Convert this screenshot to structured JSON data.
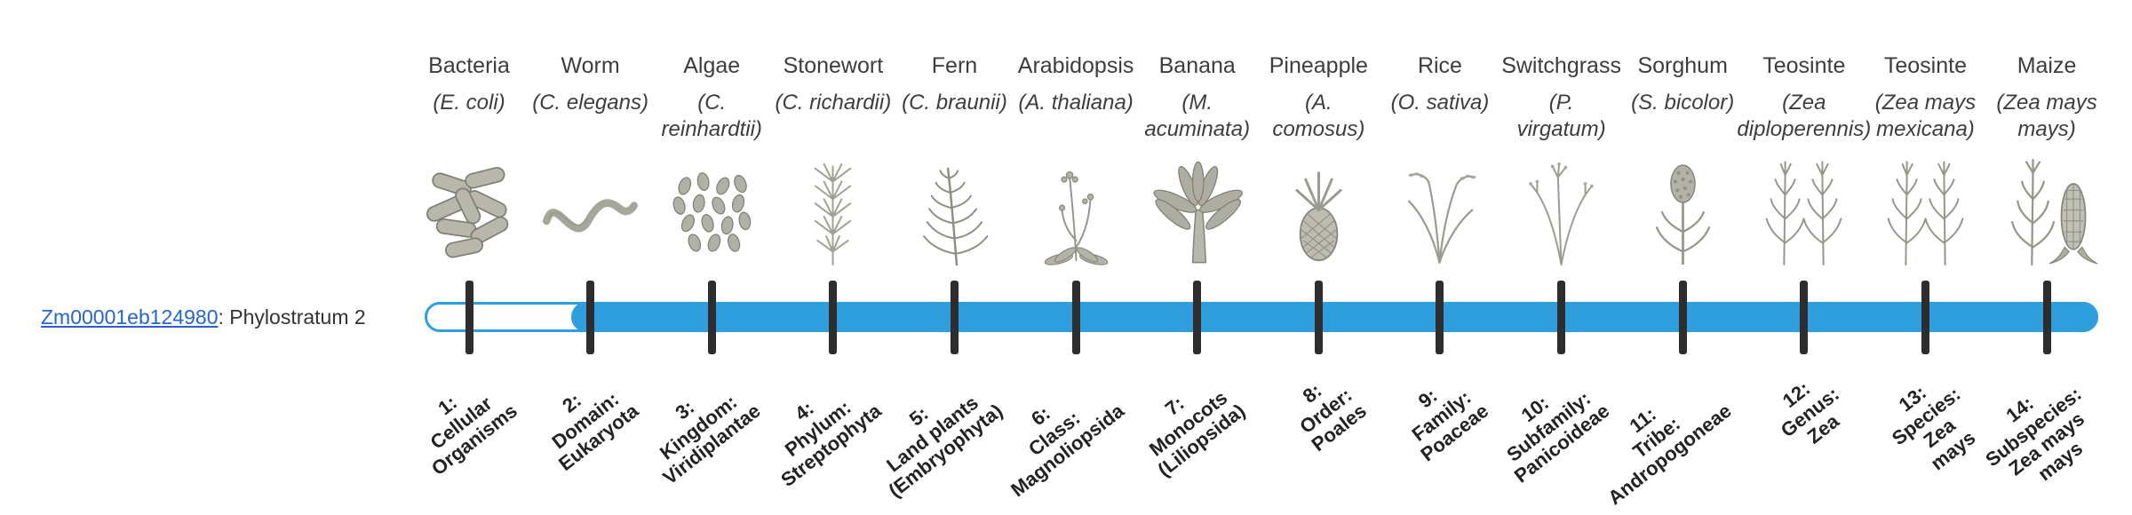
{
  "gene": {
    "id_link": "Zm00001eb124980",
    "suffix": ": Phylostratum 2"
  },
  "colors": {
    "bar_fill": "#2F9EDC",
    "tick": "#2D2D2D",
    "link": "#2566C8",
    "text": "#3D3D3D"
  },
  "bar": {
    "filled_from_stratum": 2,
    "strata_count": 14
  },
  "chart_data": {
    "type": "bar",
    "orientation": "horizontal-track",
    "title": "Zm00001eb124980: Phylostratum 2",
    "gene": "Zm00001eb124980",
    "phylostratum": 2,
    "filled_range": [
      2,
      14
    ],
    "categories": [
      "1: Cellular Organisms",
      "2: Domain: Eukaryota",
      "3: Kingdom: Viridiplantae",
      "4: Phylum: Streptophyta",
      "5: Land plants (Embryophyta)",
      "6: Class: Magnoliopsida",
      "7: Monocots (Liliopsida)",
      "8: Order: Poales",
      "9: Family: Poaceae",
      "10: Subfamily: Panicoideae",
      "11: Tribe: Andropogoneae",
      "12: Genus: Zea",
      "13: Species: Zea mays",
      "14: Subspecies: Zea mays mays"
    ],
    "legend_position": "none",
    "grid": false
  },
  "organisms": [
    {
      "common": "Bacteria",
      "scientific": "(E. coli)",
      "icon": "bacteria-icon",
      "stratum_label": "1:\nCellular\nOrganisms"
    },
    {
      "common": "Worm",
      "scientific": "(C. elegans)",
      "icon": "worm-icon",
      "stratum_label": "2:\nDomain:\nEukaryota"
    },
    {
      "common": "Algae",
      "scientific": "(C.\nreinhardtii)",
      "icon": "algae-icon",
      "stratum_label": "3:\nKingdom:\nViridiplantae"
    },
    {
      "common": "Stonewort",
      "scientific": "(C. richardii)",
      "icon": "stonewort-icon",
      "stratum_label": "4:\nPhylum:\nStreptophyta"
    },
    {
      "common": "Fern",
      "scientific": "(C. braunii)",
      "icon": "fern-icon",
      "stratum_label": "5:\nLand plants\n(Embryophyta)"
    },
    {
      "common": "Arabidopsis",
      "scientific": "(A. thaliana)",
      "icon": "arabidopsis-icon",
      "stratum_label": "6:\nClass:\nMagnoliopsida"
    },
    {
      "common": "Banana",
      "scientific": "(M.\nacuminata)",
      "icon": "banana-icon",
      "stratum_label": "7:\nMonocots\n(Liliopsida)"
    },
    {
      "common": "Pineapple",
      "scientific": "(A.\ncomosus)",
      "icon": "pineapple-icon",
      "stratum_label": "8:\nOrder:\nPoales"
    },
    {
      "common": "Rice",
      "scientific": "(O. sativa)",
      "icon": "rice-icon",
      "stratum_label": "9:\nFamily:\nPoaceae"
    },
    {
      "common": "Switchgrass",
      "scientific": "(P.\nvirgatum)",
      "icon": "switchgrass-icon",
      "stratum_label": "10:\nSubfamily:\nPanicoideae"
    },
    {
      "common": "Sorghum",
      "scientific": "(S. bicolor)",
      "icon": "sorghum-icon",
      "stratum_label": "11:\nTribe:\nAndropogoneae"
    },
    {
      "common": "Teosinte",
      "scientific": "(Zea\ndiploperennis)",
      "icon": "teosinte-icon",
      "stratum_label": "12:\nGenus:\nZea"
    },
    {
      "common": "Teosinte",
      "scientific": "(Zea mays\nmexicana)",
      "icon": "teosinte-icon",
      "stratum_label": "13:\nSpecies:\nZea\nmays"
    },
    {
      "common": "Maize",
      "scientific": "(Zea mays\nmays)",
      "icon": "maize-icon",
      "stratum_label": "14:\nSubspecies:\nZea mays\nmays"
    }
  ]
}
